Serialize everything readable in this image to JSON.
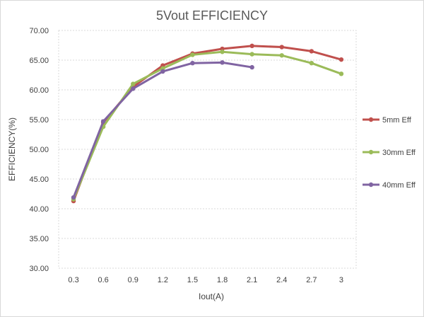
{
  "chart_data": {
    "type": "line",
    "title": "5Vout EFFICIENCY",
    "xlabel": "Iout(A)",
    "ylabel": "EFFICIENCY(%)",
    "ylim": [
      30,
      70
    ],
    "yticks": [
      "30.00",
      "35.00",
      "40.00",
      "45.00",
      "50.00",
      "55.00",
      "60.00",
      "65.00",
      "70.00"
    ],
    "categories": [
      "0.3",
      "0.6",
      "0.9",
      "1.2",
      "1.5",
      "1.8",
      "2.1",
      "2.4",
      "2.7",
      "3"
    ],
    "grid": true,
    "legend_position": "right",
    "series": [
      {
        "name": "5mm Eff",
        "color": "#c0504d",
        "values": [
          41.3,
          54.5,
          60.5,
          64.1,
          66.1,
          66.9,
          67.4,
          67.2,
          66.5,
          65.1
        ]
      },
      {
        "name": "30mm Eff",
        "color": "#9bbb59",
        "values": [
          41.6,
          53.8,
          61.0,
          63.6,
          65.9,
          66.4,
          66.0,
          65.8,
          64.5,
          62.7
        ]
      },
      {
        "name": "40mm Eff",
        "color": "#8064a2",
        "values": [
          41.9,
          54.7,
          60.2,
          63.1,
          64.5,
          64.6,
          63.8,
          null,
          null,
          null
        ]
      }
    ]
  }
}
